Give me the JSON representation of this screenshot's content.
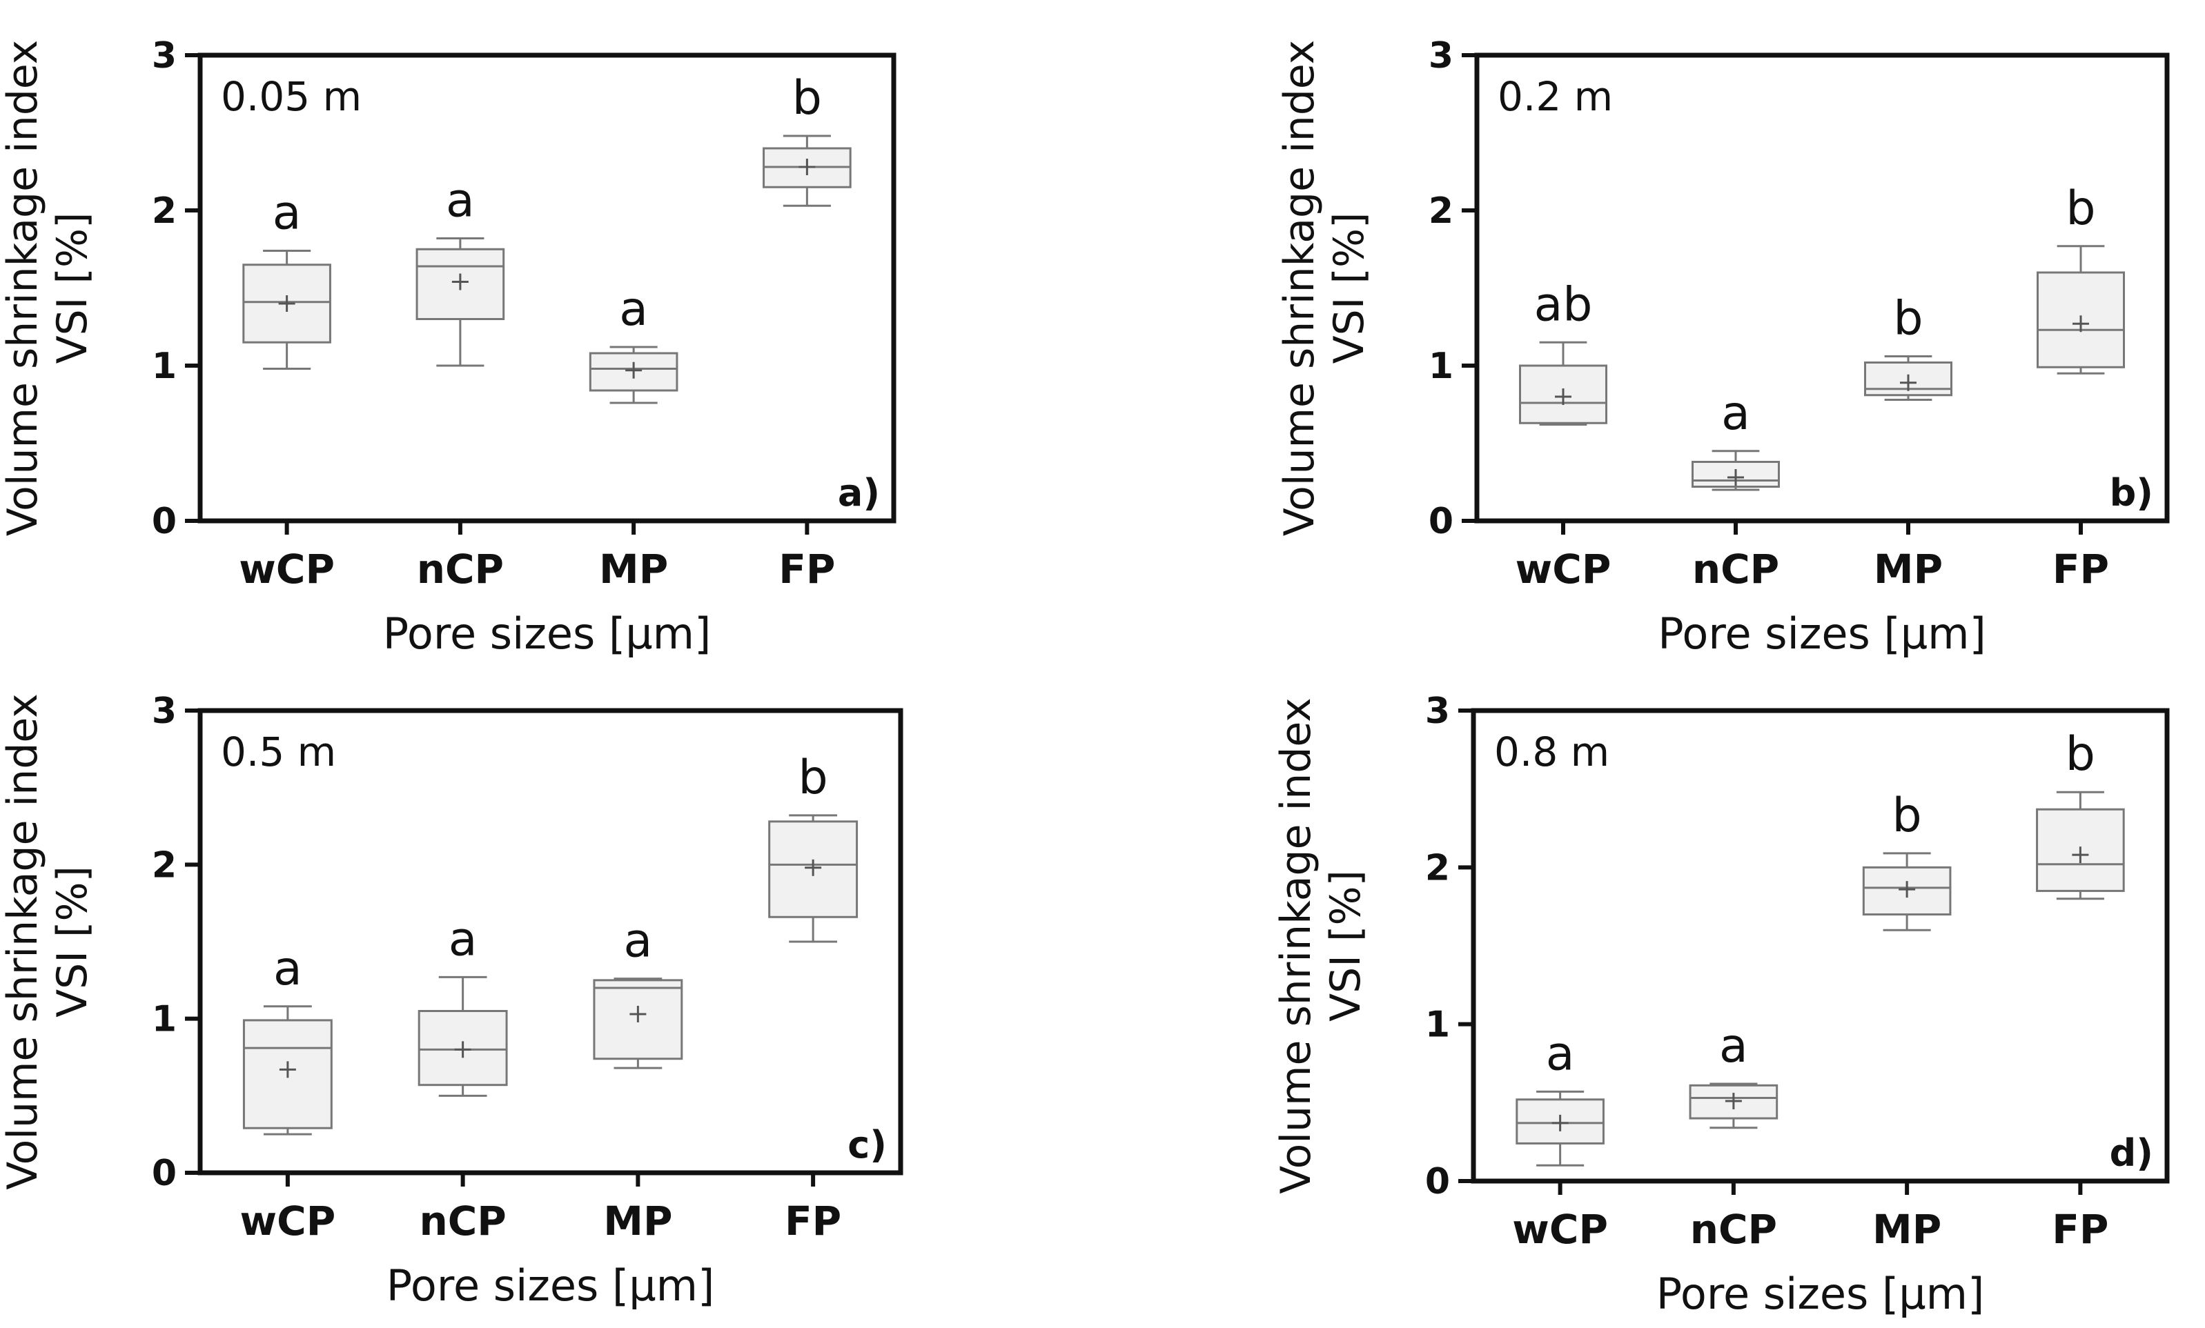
{
  "figure": {
    "xlabel": "Pore sizes [µm]",
    "ylabel_line1": "Volume shrinkage index",
    "ylabel_line2": "VSI [%]",
    "colors": {
      "box_fill": "#f1f1f1",
      "box_stroke": "#777777",
      "axis": "#111111"
    }
  },
  "chart_data": [
    {
      "type": "box",
      "panel": "a)",
      "depth_label": "0.05 m",
      "categories": [
        "wCP",
        "nCP",
        "MP",
        "FP"
      ],
      "ylim": [
        0,
        3
      ],
      "yticks": [
        "0",
        "1",
        "2",
        "3"
      ],
      "xlabel": "Pore sizes [µm]",
      "ylabel": "Volume shrinkage index VSI [%]",
      "boxes": [
        {
          "category": "wCP",
          "min": 0.98,
          "q1": 1.15,
          "median": 1.41,
          "q3": 1.65,
          "max": 1.74,
          "mean": 1.4,
          "letter": "a"
        },
        {
          "category": "nCP",
          "min": 1.0,
          "q1": 1.3,
          "median": 1.64,
          "q3": 1.75,
          "max": 1.82,
          "mean": 1.54,
          "letter": "a"
        },
        {
          "category": "MP",
          "min": 0.76,
          "q1": 0.84,
          "median": 0.98,
          "q3": 1.08,
          "max": 1.12,
          "mean": 0.97,
          "letter": "a"
        },
        {
          "category": "FP",
          "min": 2.03,
          "q1": 2.15,
          "median": 2.28,
          "q3": 2.4,
          "max": 2.48,
          "mean": 2.28,
          "letter": "b"
        }
      ]
    },
    {
      "type": "box",
      "panel": "b)",
      "depth_label": "0.2 m",
      "categories": [
        "wCP",
        "nCP",
        "MP",
        "FP"
      ],
      "ylim": [
        0,
        3
      ],
      "yticks": [
        "0",
        "1",
        "2",
        "3"
      ],
      "xlabel": "Pore sizes [µm]",
      "ylabel": "Volume shrinkage index VSI [%]",
      "boxes": [
        {
          "category": "wCP",
          "min": 0.62,
          "q1": 0.63,
          "median": 0.76,
          "q3": 1.0,
          "max": 1.15,
          "mean": 0.8,
          "letter": "ab"
        },
        {
          "category": "nCP",
          "min": 0.2,
          "q1": 0.22,
          "median": 0.26,
          "q3": 0.38,
          "max": 0.45,
          "mean": 0.28,
          "letter": "a"
        },
        {
          "category": "MP",
          "min": 0.78,
          "q1": 0.81,
          "median": 0.85,
          "q3": 1.02,
          "max": 1.06,
          "mean": 0.89,
          "letter": "b"
        },
        {
          "category": "FP",
          "min": 0.95,
          "q1": 0.99,
          "median": 1.23,
          "q3": 1.6,
          "max": 1.77,
          "mean": 1.27,
          "letter": "b"
        }
      ]
    },
    {
      "type": "box",
      "panel": "c)",
      "depth_label": "0.5 m",
      "categories": [
        "wCP",
        "nCP",
        "MP",
        "FP"
      ],
      "ylim": [
        0,
        3
      ],
      "yticks": [
        "0",
        "1",
        "2",
        "3"
      ],
      "xlabel": "Pore sizes [µm]",
      "ylabel": "Volume shrinkage index VSI [%]",
      "boxes": [
        {
          "category": "wCP",
          "min": 0.25,
          "q1": 0.29,
          "median": 0.81,
          "q3": 0.99,
          "max": 1.08,
          "mean": 0.67,
          "letter": "a"
        },
        {
          "category": "nCP",
          "min": 0.5,
          "q1": 0.57,
          "median": 0.8,
          "q3": 1.05,
          "max": 1.27,
          "mean": 0.8,
          "letter": "a"
        },
        {
          "category": "MP",
          "min": 0.68,
          "q1": 0.74,
          "median": 1.2,
          "q3": 1.25,
          "max": 1.26,
          "mean": 1.03,
          "letter": "a"
        },
        {
          "category": "FP",
          "min": 1.5,
          "q1": 1.66,
          "median": 2.0,
          "q3": 2.28,
          "max": 2.32,
          "mean": 1.98,
          "letter": "b"
        }
      ]
    },
    {
      "type": "box",
      "panel": "d)",
      "depth_label": "0.8 m",
      "categories": [
        "wCP",
        "nCP",
        "MP",
        "FP"
      ],
      "ylim": [
        0,
        3
      ],
      "yticks": [
        "0",
        "1",
        "2",
        "3"
      ],
      "xlabel": "Pore sizes [µm]",
      "ylabel": "Volume shrinkage index VSI [%]",
      "boxes": [
        {
          "category": "wCP",
          "min": 0.1,
          "q1": 0.24,
          "median": 0.37,
          "q3": 0.52,
          "max": 0.57,
          "mean": 0.37,
          "letter": "a"
        },
        {
          "category": "nCP",
          "min": 0.34,
          "q1": 0.4,
          "median": 0.53,
          "q3": 0.61,
          "max": 0.62,
          "mean": 0.51,
          "letter": "a"
        },
        {
          "category": "MP",
          "min": 1.6,
          "q1": 1.7,
          "median": 1.87,
          "q3": 2.0,
          "max": 2.09,
          "mean": 1.86,
          "letter": "b"
        },
        {
          "category": "FP",
          "min": 1.8,
          "q1": 1.85,
          "median": 2.02,
          "q3": 2.37,
          "max": 2.48,
          "mean": 2.08,
          "letter": "b"
        }
      ]
    }
  ]
}
